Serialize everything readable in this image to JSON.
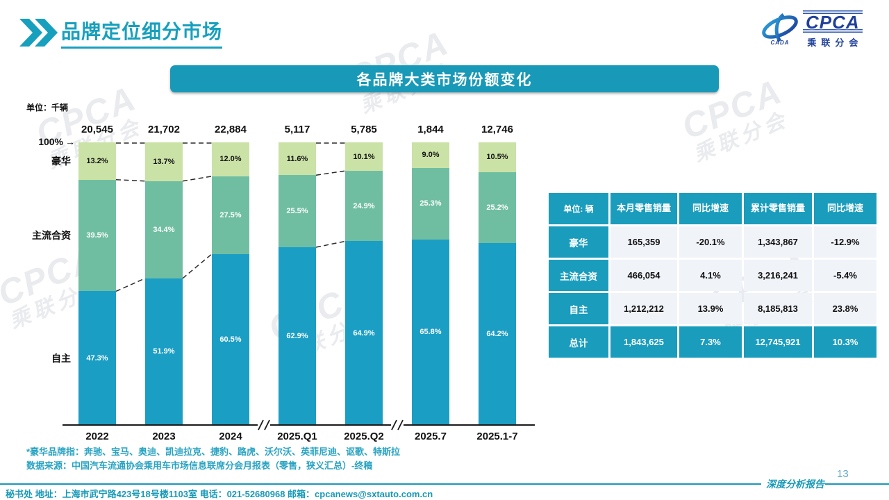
{
  "slide": {
    "title": "品牌定位细分市场",
    "banner_title": "各品牌大类市场份额变化",
    "unit_label": "单位：千辆",
    "footnote_line1": "*豪华品牌指：奔驰、宝马、奥迪、凯迪拉克、捷豹、路虎、沃尔沃、英菲尼迪、讴歌、特斯拉",
    "footnote_line2": "数据来源：中国汽车流通协会乘用车市场信息联席分会月报表（零售，狭义汇总）-终稿",
    "footer": "秘书处  地址：上海市武宁路423号18号楼1103室  电话：021-52680968   邮箱：cpcanews@sxtauto.com.cn",
    "report_label": "深度分析报告",
    "page_number": "13"
  },
  "logo": {
    "wordmark": "CPCA",
    "subtitle": "乘联分会",
    "swoosh_caption": "CADA"
  },
  "watermark": {
    "line1": "CPCA",
    "line2": "乘联分会"
  },
  "chart_data": {
    "type": "bar",
    "stacked": true,
    "unit": "千辆",
    "categories": [
      "2022",
      "2023",
      "2024",
      "2025.Q1",
      "2025.Q2",
      "2025.7",
      "2025.1-7"
    ],
    "totals": [
      "20,545",
      "21,702",
      "22,884",
      "5,117",
      "5,785",
      "1,844",
      "12,746"
    ],
    "series": [
      {
        "name": "豪华",
        "values": [
          13.2,
          13.7,
          12.0,
          11.6,
          10.1,
          9.0,
          10.5
        ],
        "color": "#cbe2a7",
        "label_color": "#111111"
      },
      {
        "name": "主流合资",
        "values": [
          39.5,
          34.4,
          27.5,
          25.5,
          24.9,
          25.3,
          25.2
        ],
        "color": "#70bea2",
        "label_color": "#ffffff"
      },
      {
        "name": "自主",
        "values": [
          47.3,
          51.9,
          60.5,
          62.9,
          64.9,
          65.8,
          64.2
        ],
        "color": "#1b9ec4",
        "label_color": "#ffffff"
      }
    ],
    "y_top_label": "100%",
    "y_top_arrow": "→",
    "ylim": [
      0,
      100
    ],
    "grid": false,
    "legend_position": "left-of-bars",
    "connected_pairs": [
      [
        0,
        1
      ],
      [
        1,
        2
      ],
      [
        3,
        4
      ]
    ],
    "axis_breaks_after": [
      2,
      4
    ]
  },
  "table": {
    "headers": [
      "单位: 辆",
      "本月零售销量",
      "同比增速",
      "累计零售销量",
      "同比增速"
    ],
    "rows": [
      {
        "label": "豪华",
        "cells": [
          "165,359",
          "-20.1%",
          "1,343,867",
          "-12.9%"
        ],
        "is_total": false
      },
      {
        "label": "主流合资",
        "cells": [
          "466,054",
          "4.1%",
          "3,216,241",
          "-5.4%"
        ],
        "is_total": false
      },
      {
        "label": "自主",
        "cells": [
          "1,212,212",
          "13.9%",
          "8,185,813",
          "23.8%"
        ],
        "is_total": false
      },
      {
        "label": "总计",
        "cells": [
          "1,843,625",
          "7.3%",
          "12,745,921",
          "10.3%"
        ],
        "is_total": true
      }
    ]
  },
  "colors": {
    "teal": "#1899b7",
    "table_teal": "#1a9cbc",
    "bar_teal": "#1b9ec4",
    "sage": "#70bea2",
    "light_green": "#cbe2a7",
    "logo_blue": "#20409a",
    "page_number_blue": "#64a9c9",
    "footnote_teal": "#29a3c2"
  }
}
